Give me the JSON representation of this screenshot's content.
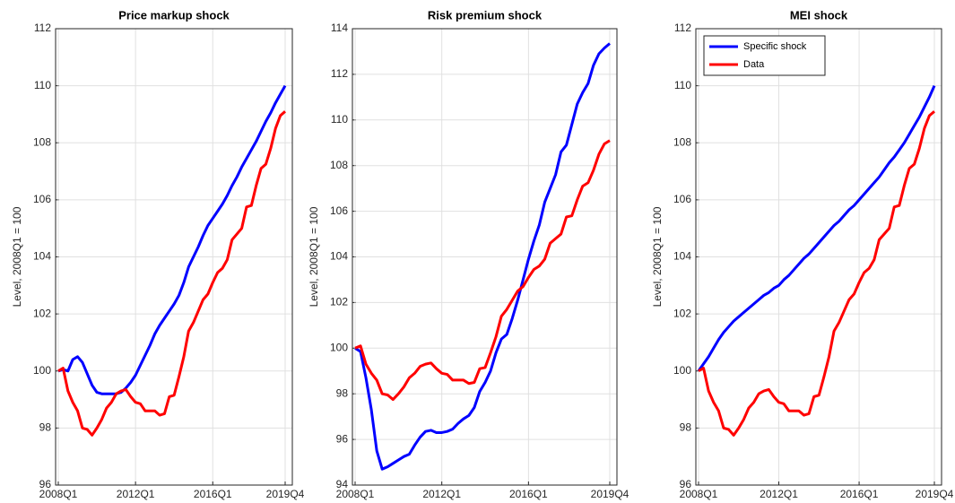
{
  "chart_data": [
    {
      "type": "line",
      "title": "Price markup shock",
      "ylabel": "Level, 2008Q1 = 100",
      "categories": [
        "2008Q1",
        null,
        null,
        null,
        null,
        null,
        null,
        null,
        null,
        null,
        null,
        null,
        null,
        null,
        null,
        null,
        "2012Q1",
        null,
        null,
        null,
        null,
        null,
        null,
        null,
        null,
        null,
        null,
        null,
        null,
        null,
        null,
        null,
        "2016Q1",
        null,
        null,
        null,
        null,
        null,
        null,
        null,
        null,
        null,
        null,
        null,
        null,
        null,
        null,
        "2019Q4"
      ],
      "ylim": [
        96,
        112
      ],
      "yticks": [
        96,
        98,
        100,
        102,
        104,
        106,
        108,
        110,
        112
      ],
      "grid": true,
      "series": [
        {
          "color": "#0000ff",
          "values": [
            100,
            100.05,
            100.0,
            100.4,
            100.5,
            100.3,
            99.9,
            99.5,
            99.25,
            99.2,
            99.2,
            99.2,
            99.2,
            99.25,
            99.4,
            99.6,
            99.85,
            100.2,
            100.55,
            100.9,
            101.3,
            101.6,
            101.85,
            102.1,
            102.35,
            102.65,
            103.1,
            103.65,
            104.0,
            104.35,
            104.75,
            105.1,
            105.35,
            105.6,
            105.85,
            106.15,
            106.5,
            106.8,
            107.15,
            107.45,
            107.75,
            108.05,
            108.4,
            108.75,
            109.05,
            109.4,
            109.7,
            110.0
          ]
        },
        {
          "color": "#ff0000",
          "values": [
            100,
            100.1,
            99.3,
            98.9,
            98.6,
            98.0,
            97.95,
            97.75,
            98.0,
            98.3,
            98.7,
            98.9,
            99.2,
            99.3,
            99.35,
            99.1,
            98.9,
            98.85,
            98.6,
            98.6,
            98.6,
            98.45,
            98.5,
            99.1,
            99.15,
            99.8,
            100.5,
            101.4,
            101.7,
            102.1,
            102.5,
            102.7,
            103.1,
            103.45,
            103.6,
            103.9,
            104.6,
            104.8,
            105.0,
            105.75,
            105.8,
            106.5,
            107.1,
            107.25,
            107.8,
            108.5,
            108.95,
            109.1
          ]
        }
      ]
    },
    {
      "type": "line",
      "title": "Risk premium shock",
      "ylabel": "Level, 2008Q1 = 100",
      "categories": [
        "2008Q1",
        null,
        null,
        null,
        null,
        null,
        null,
        null,
        null,
        null,
        null,
        null,
        null,
        null,
        null,
        null,
        "2012Q1",
        null,
        null,
        null,
        null,
        null,
        null,
        null,
        null,
        null,
        null,
        null,
        null,
        null,
        null,
        null,
        "2016Q1",
        null,
        null,
        null,
        null,
        null,
        null,
        null,
        null,
        null,
        null,
        null,
        null,
        null,
        null,
        "2019Q4"
      ],
      "ylim": [
        94,
        114
      ],
      "yticks": [
        94,
        96,
        98,
        100,
        102,
        104,
        106,
        108,
        110,
        112,
        114
      ],
      "grid": true,
      "series": [
        {
          "color": "#0000ff",
          "values": [
            100,
            99.85,
            98.7,
            97.3,
            95.5,
            94.7,
            94.8,
            94.95,
            95.1,
            95.25,
            95.35,
            95.75,
            96.1,
            96.35,
            96.4,
            96.3,
            96.3,
            96.35,
            96.45,
            96.7,
            96.9,
            97.05,
            97.4,
            98.1,
            98.5,
            99.0,
            99.8,
            100.4,
            100.6,
            101.3,
            102.1,
            103.0,
            103.9,
            104.7,
            105.4,
            106.4,
            107.0,
            107.6,
            108.6,
            108.9,
            109.8,
            110.7,
            111.2,
            111.6,
            112.4,
            112.9,
            113.15,
            113.35
          ]
        },
        {
          "color": "#ff0000",
          "values": [
            100,
            100.1,
            99.3,
            98.9,
            98.6,
            98.0,
            97.95,
            97.75,
            98.0,
            98.3,
            98.7,
            98.9,
            99.2,
            99.3,
            99.35,
            99.1,
            98.9,
            98.85,
            98.6,
            98.6,
            98.6,
            98.45,
            98.5,
            99.1,
            99.15,
            99.8,
            100.5,
            101.4,
            101.7,
            102.1,
            102.5,
            102.7,
            103.1,
            103.45,
            103.6,
            103.9,
            104.6,
            104.8,
            105.0,
            105.75,
            105.8,
            106.5,
            107.1,
            107.25,
            107.8,
            108.5,
            108.95,
            109.1
          ]
        }
      ]
    },
    {
      "type": "line",
      "title": "MEI shock",
      "ylabel": "Level, 2008Q1 = 100",
      "categories": [
        "2008Q1",
        null,
        null,
        null,
        null,
        null,
        null,
        null,
        null,
        null,
        null,
        null,
        null,
        null,
        null,
        null,
        "2012Q1",
        null,
        null,
        null,
        null,
        null,
        null,
        null,
        null,
        null,
        null,
        null,
        null,
        null,
        null,
        null,
        "2016Q1",
        null,
        null,
        null,
        null,
        null,
        null,
        null,
        null,
        null,
        null,
        null,
        null,
        null,
        null,
        "2019Q4"
      ],
      "ylim": [
        96,
        112
      ],
      "yticks": [
        96,
        98,
        100,
        102,
        104,
        106,
        108,
        110,
        112
      ],
      "grid": true,
      "legend": "upper left",
      "series": [
        {
          "name": "Specific shock",
          "color": "#0000ff",
          "values": [
            100,
            100.25,
            100.5,
            100.8,
            101.1,
            101.35,
            101.55,
            101.75,
            101.9,
            102.05,
            102.2,
            102.35,
            102.5,
            102.65,
            102.75,
            102.9,
            103.0,
            103.2,
            103.35,
            103.55,
            103.75,
            103.95,
            104.1,
            104.3,
            104.5,
            104.7,
            104.9,
            105.1,
            105.25,
            105.45,
            105.65,
            105.8,
            106.0,
            106.2,
            106.4,
            106.6,
            106.8,
            107.05,
            107.3,
            107.5,
            107.75,
            108.0,
            108.3,
            108.6,
            108.9,
            109.25,
            109.6,
            110.0
          ]
        },
        {
          "name": "Data",
          "color": "#ff0000",
          "values": [
            100,
            100.1,
            99.3,
            98.9,
            98.6,
            98.0,
            97.95,
            97.75,
            98.0,
            98.3,
            98.7,
            98.9,
            99.2,
            99.3,
            99.35,
            99.1,
            98.9,
            98.85,
            98.6,
            98.6,
            98.6,
            98.45,
            98.5,
            99.1,
            99.15,
            99.8,
            100.5,
            101.4,
            101.7,
            102.1,
            102.5,
            102.7,
            103.1,
            103.45,
            103.6,
            103.9,
            104.6,
            104.8,
            105.0,
            105.75,
            105.8,
            106.5,
            107.1,
            107.25,
            107.8,
            108.5,
            108.95,
            109.1
          ]
        }
      ]
    }
  ]
}
